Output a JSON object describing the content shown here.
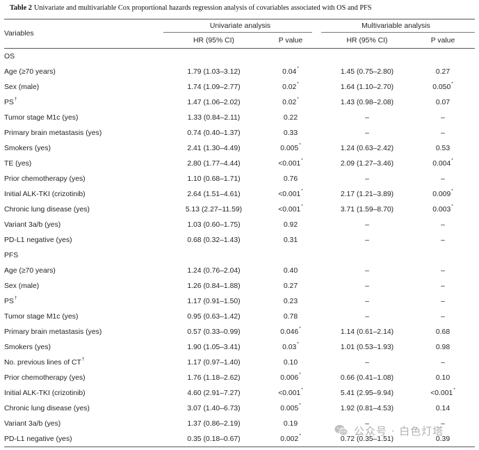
{
  "title": {
    "label": "Table 2",
    "text": "Univariate and multivariable Cox proportional hazards regression analysis of covariables associated with OS and PFS"
  },
  "header": {
    "variables": "Variables",
    "univariate": "Univariate analysis",
    "multivariable": "Multivariable analysis",
    "hr": "HR (95% CI)",
    "p": "P value"
  },
  "sections": [
    {
      "name": "OS",
      "rows": [
        {
          "variable": "Age (≥70 years)",
          "uni_hr": "1.79 (1.03–3.12)",
          "uni_p": "0.04*",
          "multi_hr": "1.45 (0.75–2.80)",
          "multi_p": "0.27"
        },
        {
          "variable": "Sex (male)",
          "uni_hr": "1.74 (1.09–2.77)",
          "uni_p": "0.02*",
          "multi_hr": "1.64 (1.10–2.70)",
          "multi_p": "0.050*"
        },
        {
          "variable": "PS†",
          "uni_hr": "1.47 (1.06–2.02)",
          "uni_p": "0.02*",
          "multi_hr": "1.43 (0.98–2.08)",
          "multi_p": "0.07"
        },
        {
          "variable": "Tumor stage M1c (yes)",
          "uni_hr": "1.33 (0.84–2.11)",
          "uni_p": "0.22",
          "multi_hr": "–",
          "multi_p": "–"
        },
        {
          "variable": "Primary brain metastasis (yes)",
          "uni_hr": "0.74 (0.40–1.37)",
          "uni_p": "0.33",
          "multi_hr": "–",
          "multi_p": "–"
        },
        {
          "variable": "Smokers (yes)",
          "uni_hr": "2.41 (1.30–4.49)",
          "uni_p": "0.005*",
          "multi_hr": "1.24 (0.63–2.42)",
          "multi_p": "0.53"
        },
        {
          "variable": "TE (yes)",
          "uni_hr": "2.80 (1.77–4.44)",
          "uni_p": "<0.001*",
          "multi_hr": "2.09 (1.27–3.46)",
          "multi_p": "0.004*"
        },
        {
          "variable": "Prior chemotherapy (yes)",
          "uni_hr": "1.10 (0.68–1.71)",
          "uni_p": "0.76",
          "multi_hr": "–",
          "multi_p": "–"
        },
        {
          "variable": "Initial ALK-TKI (crizotinib)",
          "uni_hr": "2.64 (1.51–4.61)",
          "uni_p": "<0.001*",
          "multi_hr": "2.17 (1.21–3.89)",
          "multi_p": "0.009*"
        },
        {
          "variable": "Chronic lung disease (yes)",
          "uni_hr": "5.13 (2.27–11.59)",
          "uni_p": "<0.001*",
          "multi_hr": "3.71 (1.59–8.70)",
          "multi_p": "0.003*"
        },
        {
          "variable": "Variant 3a/b (yes)",
          "uni_hr": "1.03 (0.60–1.75)",
          "uni_p": "0.92",
          "multi_hr": "–",
          "multi_p": "–"
        },
        {
          "variable": "PD-L1 negative (yes)",
          "uni_hr": "0.68 (0.32–1.43)",
          "uni_p": "0.31",
          "multi_hr": "–",
          "multi_p": "–"
        }
      ]
    },
    {
      "name": "PFS",
      "rows": [
        {
          "variable": "Age (≥70 years)",
          "uni_hr": "1.24 (0.76–2.04)",
          "uni_p": "0.40",
          "multi_hr": "–",
          "multi_p": "–"
        },
        {
          "variable": "Sex (male)",
          "uni_hr": "1.26 (0.84–1.88)",
          "uni_p": "0.27",
          "multi_hr": "–",
          "multi_p": "–"
        },
        {
          "variable": "PS†",
          "uni_hr": "1.17 (0.91–1.50)",
          "uni_p": "0.23",
          "multi_hr": "–",
          "multi_p": "–"
        },
        {
          "variable": "Tumor stage M1c (yes)",
          "uni_hr": "0.95 (0.63–1.42)",
          "uni_p": "0.78",
          "multi_hr": "–",
          "multi_p": "–"
        },
        {
          "variable": "Primary brain metastasis (yes)",
          "uni_hr": "0.57 (0.33–0.99)",
          "uni_p": "0.046*",
          "multi_hr": "1.14 (0.61–2.14)",
          "multi_p": "0.68"
        },
        {
          "variable": "Smokers (yes)",
          "uni_hr": "1.90 (1.05–3.41)",
          "uni_p": "0.03*",
          "multi_hr": "1.01 (0.53–1.93)",
          "multi_p": "0.98"
        },
        {
          "variable": "No. previous lines of CT†",
          "uni_hr": "1.17 (0.97–1.40)",
          "uni_p": "0.10",
          "multi_hr": "–",
          "multi_p": "–"
        },
        {
          "variable": "Prior chemotherapy (yes)",
          "uni_hr": "1.76 (1.18–2.62)",
          "uni_p": "0.006*",
          "multi_hr": "0.66 (0.41–1.08)",
          "multi_p": "0.10"
        },
        {
          "variable": "Initial ALK-TKI (crizotinib)",
          "uni_hr": "4.60 (2.91–7.27)",
          "uni_p": "<0.001*",
          "multi_hr": "5.41 (2.95–9.94)",
          "multi_p": "<0.001*"
        },
        {
          "variable": "Chronic lung disease (yes)",
          "uni_hr": "3.07 (1.40–6.73)",
          "uni_p": "0.005*",
          "multi_hr": "1.92 (0.81–4.53)",
          "multi_p": "0.14"
        },
        {
          "variable": "Variant 3a/b (yes)",
          "uni_hr": "1.37 (0.86–2.19)",
          "uni_p": "0.19",
          "multi_hr": "–",
          "multi_p": "–"
        },
        {
          "variable": "PD-L1 negative (yes)",
          "uni_hr": "0.35 (0.18–0.67)",
          "uni_p": "0.002*",
          "multi_hr": "0.72 (0.35–1.51)",
          "multi_p": "0.39"
        }
      ]
    }
  ],
  "watermark": {
    "icon": "wechat-icon",
    "text": "公众号 · 白色灯塔"
  }
}
